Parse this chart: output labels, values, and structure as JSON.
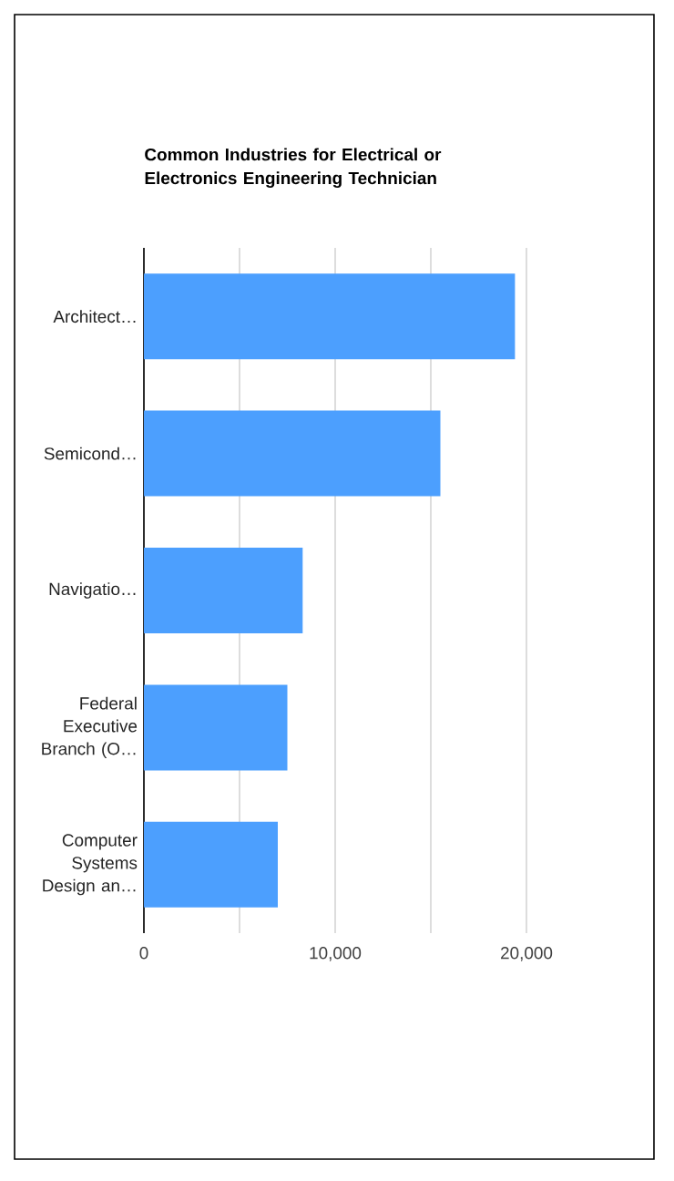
{
  "chart_data": {
    "type": "bar",
    "orientation": "horizontal",
    "title": "Common Industries for Electrical or Electronics Engineering Technician",
    "categories": [
      "Architect…",
      "Semicond…",
      "Navigatio…",
      "Federal Executive Branch (O…",
      "Computer Systems Design an…"
    ],
    "values": [
      19400,
      15500,
      8300,
      7500,
      7000
    ],
    "color": "#4c9ffe",
    "xlim": [
      0,
      20000
    ],
    "xticks": [
      0,
      {
        "value": 5000,
        "label": null
      },
      {
        "value": 10000,
        "label": "10,000"
      },
      {
        "value": 15000,
        "label": null
      },
      {
        "value": 20000,
        "label": "20,000"
      }
    ],
    "grid": "x"
  }
}
